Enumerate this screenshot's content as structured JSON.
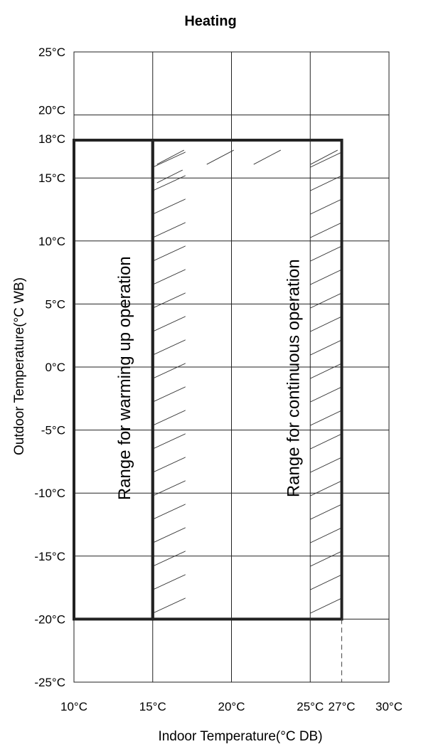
{
  "chart_data": {
    "type": "area",
    "title": "Heating",
    "xlabel": "Indoor Temperature(°C DB)",
    "ylabel": "Outdoor Temperature(°C WB)",
    "xlim": [
      10,
      30
    ],
    "ylim": [
      -25,
      25
    ],
    "x_ticks": [
      {
        "value": 10,
        "label": "10°C"
      },
      {
        "value": 15,
        "label": "15°C"
      },
      {
        "value": 20,
        "label": "20°C"
      },
      {
        "value": 25,
        "label": "25°C"
      },
      {
        "value": 27,
        "label": "27°C"
      },
      {
        "value": 30,
        "label": "30°C"
      }
    ],
    "y_ticks": [
      {
        "value": 25,
        "label": "25°C"
      },
      {
        "value": 20,
        "label": "20°C"
      },
      {
        "value": 18,
        "label": "18°C"
      },
      {
        "value": 15,
        "label": "15°C"
      },
      {
        "value": 10,
        "label": "10°C"
      },
      {
        "value": 5,
        "label": "5°C"
      },
      {
        "value": 0,
        "label": "0°C"
      },
      {
        "value": -5,
        "label": "-5°C"
      },
      {
        "value": -10,
        "label": "-10°C"
      },
      {
        "value": -15,
        "label": "-15°C"
      },
      {
        "value": -20,
        "label": "-20°C"
      },
      {
        "value": -25,
        "label": "-25°C"
      }
    ],
    "grid": true,
    "regions": [
      {
        "label": "Range for warming up operation",
        "x": [
          10,
          15
        ],
        "y": [
          -20,
          18
        ],
        "hatched": false
      },
      {
        "label": "Range for continuous operation",
        "x": [
          15,
          27
        ],
        "y": [
          -20,
          18
        ],
        "hatched": true
      }
    ],
    "reference_lines": [
      {
        "x": 27,
        "y": [
          -25,
          -20
        ],
        "style": "dashed"
      }
    ]
  }
}
